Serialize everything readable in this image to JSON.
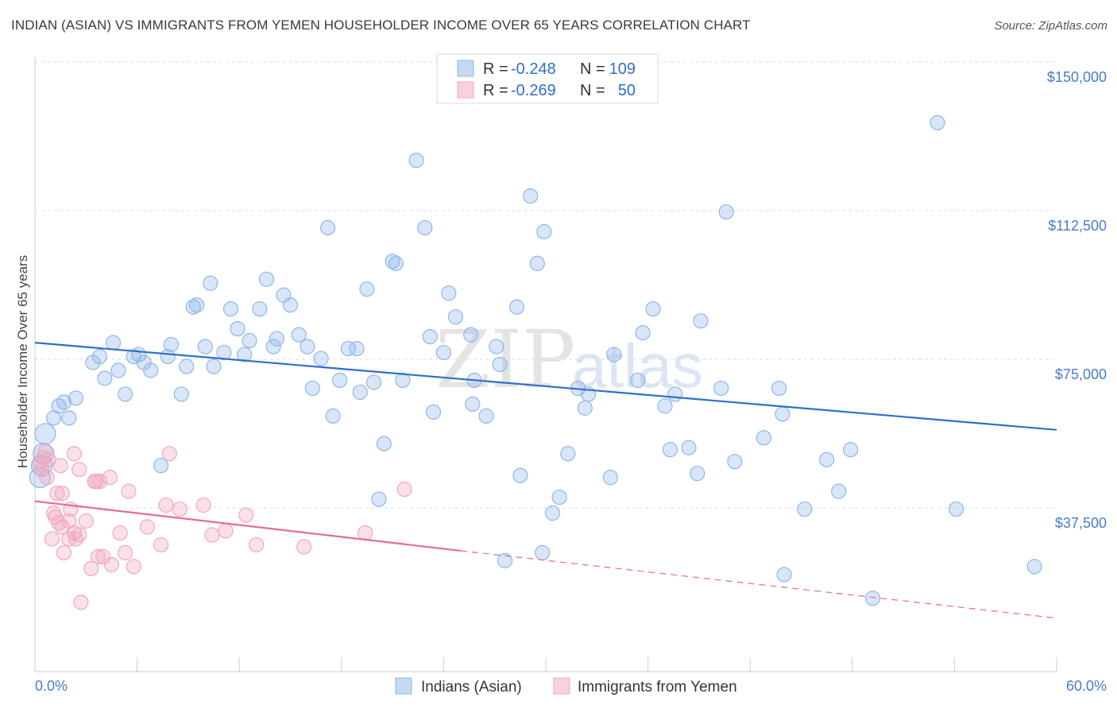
{
  "title": "INDIAN (ASIAN) VS IMMIGRANTS FROM YEMEN HOUSEHOLDER INCOME OVER 65 YEARS CORRELATION CHART",
  "source": "Source: ZipAtlas.com",
  "watermark": {
    "zip": "ZIP",
    "atlas": "atlas"
  },
  "colors": {
    "blue": "#8fb7ea",
    "blue_line": "#2f6fcc",
    "pink": "#f2a7c0",
    "pink_line": "#e86a98",
    "axis_text": "#4a7bd0",
    "grid": "#dddddd"
  },
  "legend_top": [
    {
      "r_label": "R =",
      "r_value": "-0.248",
      "n_label": "N =",
      "n_value": "109",
      "color": "blue"
    },
    {
      "r_label": "R =",
      "r_value": "-0.269",
      "n_label": "N =",
      "n_value": "50",
      "color": "pink"
    }
  ],
  "chart_data": {
    "type": "scatter",
    "ylabel": "Householder Income Over 65 years",
    "xlim": [
      0,
      60
    ],
    "ylim": [
      0,
      150000
    ],
    "x_tick_labels": [
      "0.0%",
      "60.0%"
    ],
    "y_ticks": [
      {
        "value": 37500,
        "label": "$37,500"
      },
      {
        "value": 75000,
        "label": "$75,000"
      },
      {
        "value": 112500,
        "label": "$112,500"
      },
      {
        "value": 150000,
        "label": "$150,000"
      }
    ],
    "legend_placement": "bottom-center",
    "grid": true,
    "series": [
      {
        "name": "Indians (Asian)",
        "color": "blue",
        "trend": {
          "x": [
            0,
            60
          ],
          "y": [
            83000,
            61000
          ],
          "dashed_to": null
        },
        "points": [
          [
            0.3,
            49000
          ],
          [
            0.4,
            52000
          ],
          [
            0.5,
            55000
          ],
          [
            0.6,
            60000
          ],
          [
            1.1,
            64000
          ],
          [
            1.4,
            67000
          ],
          [
            1.7,
            68000
          ],
          [
            2.0,
            64000
          ],
          [
            2.4,
            69000
          ],
          [
            3.4,
            78000
          ],
          [
            3.8,
            79500
          ],
          [
            4.1,
            74000
          ],
          [
            4.6,
            83000
          ],
          [
            4.9,
            76000
          ],
          [
            5.3,
            70000
          ],
          [
            5.8,
            79500
          ],
          [
            6.1,
            80000
          ],
          [
            6.4,
            78000
          ],
          [
            6.8,
            76000
          ],
          [
            7.4,
            52000
          ],
          [
            7.8,
            79500
          ],
          [
            8.0,
            82500
          ],
          [
            8.6,
            70000
          ],
          [
            8.9,
            77000
          ],
          [
            9.3,
            92000
          ],
          [
            9.5,
            92500
          ],
          [
            10.0,
            82000
          ],
          [
            10.3,
            98000
          ],
          [
            10.5,
            77000
          ],
          [
            11.1,
            80500
          ],
          [
            11.5,
            91500
          ],
          [
            11.9,
            86500
          ],
          [
            12.3,
            80000
          ],
          [
            12.6,
            83500
          ],
          [
            13.2,
            91500
          ],
          [
            13.6,
            99000
          ],
          [
            14.0,
            82000
          ],
          [
            14.2,
            84000
          ],
          [
            14.6,
            95000
          ],
          [
            15.0,
            92500
          ],
          [
            15.5,
            85000
          ],
          [
            16.0,
            82000
          ],
          [
            16.3,
            71500
          ],
          [
            16.8,
            79000
          ],
          [
            17.2,
            112000
          ],
          [
            17.5,
            64500
          ],
          [
            17.9,
            73500
          ],
          [
            18.4,
            81500
          ],
          [
            18.9,
            81500
          ],
          [
            19.1,
            70500
          ],
          [
            19.5,
            96500
          ],
          [
            19.9,
            73000
          ],
          [
            20.2,
            43500
          ],
          [
            20.5,
            57500
          ],
          [
            21.0,
            103500
          ],
          [
            21.2,
            103000
          ],
          [
            21.6,
            73500
          ],
          [
            22.4,
            129000
          ],
          [
            22.9,
            112000
          ],
          [
            23.2,
            84500
          ],
          [
            23.4,
            65500
          ],
          [
            24.0,
            80500
          ],
          [
            24.3,
            95500
          ],
          [
            24.7,
            89500
          ],
          [
            25.6,
            85000
          ],
          [
            25.7,
            67500
          ],
          [
            25.8,
            73500
          ],
          [
            26.5,
            64500
          ],
          [
            27.1,
            82000
          ],
          [
            27.3,
            77500
          ],
          [
            27.6,
            28000
          ],
          [
            28.3,
            92000
          ],
          [
            28.5,
            49500
          ],
          [
            29.1,
            120000
          ],
          [
            29.5,
            103000
          ],
          [
            29.9,
            111000
          ],
          [
            30.4,
            40000
          ],
          [
            30.8,
            44000
          ],
          [
            31.3,
            55000
          ],
          [
            31.9,
            71500
          ],
          [
            32.3,
            66500
          ],
          [
            32.5,
            70000
          ],
          [
            33.8,
            49000
          ],
          [
            34.0,
            80000
          ],
          [
            35.4,
            73500
          ],
          [
            35.7,
            85500
          ],
          [
            36.3,
            91500
          ],
          [
            37.0,
            67000
          ],
          [
            37.3,
            56000
          ],
          [
            37.6,
            70000
          ],
          [
            38.4,
            56500
          ],
          [
            38.9,
            50000
          ],
          [
            39.1,
            88500
          ],
          [
            40.3,
            71500
          ],
          [
            40.6,
            116000
          ],
          [
            41.1,
            53000
          ],
          [
            42.8,
            59000
          ],
          [
            43.7,
            71500
          ],
          [
            43.9,
            65000
          ],
          [
            44.0,
            24500
          ],
          [
            45.2,
            41000
          ],
          [
            46.5,
            53500
          ],
          [
            47.2,
            45500
          ],
          [
            47.9,
            56000
          ],
          [
            49.2,
            18500
          ],
          [
            53.0,
            138500
          ],
          [
            54.1,
            41000
          ],
          [
            58.7,
            26500
          ],
          [
            29.8,
            30000
          ]
        ]
      },
      {
        "name": "Immigrants from Yemen",
        "color": "pink",
        "trend": {
          "x": [
            0,
            25
          ],
          "y": [
            43000,
            30500
          ],
          "dashed_to": {
            "x": 60,
            "y": 13500
          }
        },
        "points": [
          [
            0.3,
            52500
          ],
          [
            0.4,
            51000
          ],
          [
            0.5,
            54000
          ],
          [
            0.6,
            55500
          ],
          [
            0.7,
            49000
          ],
          [
            0.8,
            53500
          ],
          [
            1.0,
            33500
          ],
          [
            1.1,
            40000
          ],
          [
            1.2,
            39000
          ],
          [
            1.3,
            45000
          ],
          [
            1.4,
            37500
          ],
          [
            1.5,
            52000
          ],
          [
            1.6,
            36500
          ],
          [
            1.6,
            45000
          ],
          [
            1.7,
            30000
          ],
          [
            2.0,
            33500
          ],
          [
            2.0,
            38000
          ],
          [
            2.1,
            41000
          ],
          [
            2.3,
            35000
          ],
          [
            2.3,
            55000
          ],
          [
            2.4,
            33500
          ],
          [
            2.6,
            51000
          ],
          [
            2.6,
            34500
          ],
          [
            2.7,
            17500
          ],
          [
            3.0,
            38000
          ],
          [
            3.3,
            26000
          ],
          [
            3.5,
            48000
          ],
          [
            3.6,
            48000
          ],
          [
            3.7,
            29000
          ],
          [
            3.8,
            48000
          ],
          [
            4.0,
            29000
          ],
          [
            4.4,
            49000
          ],
          [
            4.5,
            27000
          ],
          [
            5.0,
            35000
          ],
          [
            5.3,
            30000
          ],
          [
            5.5,
            45500
          ],
          [
            5.8,
            26500
          ],
          [
            6.6,
            36500
          ],
          [
            7.4,
            32000
          ],
          [
            7.7,
            42000
          ],
          [
            7.9,
            55000
          ],
          [
            8.5,
            41000
          ],
          [
            9.9,
            42000
          ],
          [
            10.4,
            34500
          ],
          [
            11.2,
            35500
          ],
          [
            12.4,
            39500
          ],
          [
            13.0,
            32000
          ],
          [
            15.8,
            31500
          ],
          [
            19.4,
            35000
          ],
          [
            21.7,
            46000
          ]
        ]
      }
    ]
  }
}
